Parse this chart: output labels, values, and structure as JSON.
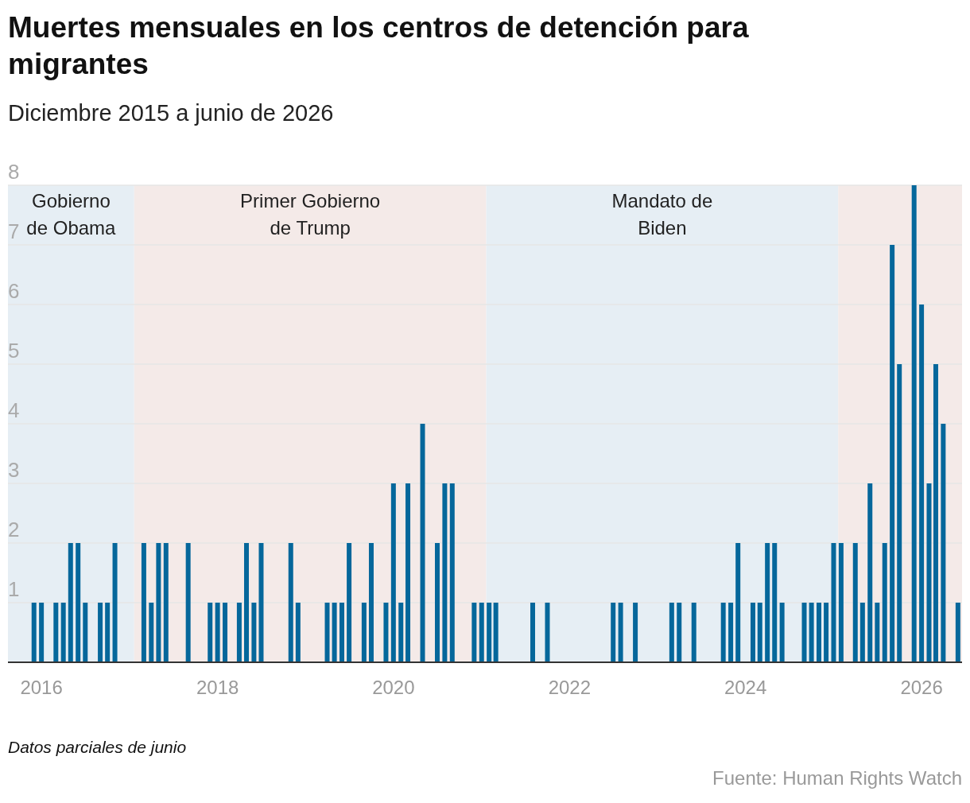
{
  "chart_data": {
    "type": "bar",
    "title": "Muertes mensuales en los centros de detención para migrantes",
    "subtitle": "Diciembre 2015 a junio de 2026",
    "x": [
      "2015-12",
      "2016-01",
      "2016-02",
      "2016-03",
      "2016-04",
      "2016-05",
      "2016-06",
      "2016-07",
      "2016-08",
      "2016-09",
      "2016-10",
      "2016-11",
      "2016-12",
      "2017-01",
      "2017-02",
      "2017-03",
      "2017-04",
      "2017-05",
      "2017-06",
      "2017-07",
      "2017-08",
      "2017-09",
      "2017-10",
      "2017-11",
      "2017-12",
      "2018-01",
      "2018-02",
      "2018-03",
      "2018-04",
      "2018-05",
      "2018-06",
      "2018-07",
      "2018-08",
      "2018-09",
      "2018-10",
      "2018-11",
      "2018-12",
      "2019-01",
      "2019-02",
      "2019-03",
      "2019-04",
      "2019-05",
      "2019-06",
      "2019-07",
      "2019-08",
      "2019-09",
      "2019-10",
      "2019-11",
      "2019-12",
      "2020-01",
      "2020-02",
      "2020-03",
      "2020-04",
      "2020-05",
      "2020-06",
      "2020-07",
      "2020-08",
      "2020-09",
      "2020-10",
      "2020-11",
      "2020-12",
      "2021-01",
      "2021-02",
      "2021-03",
      "2021-04",
      "2021-05",
      "2021-06",
      "2021-07",
      "2021-08",
      "2021-09",
      "2021-10",
      "2021-11",
      "2021-12",
      "2022-01",
      "2022-02",
      "2022-03",
      "2022-04",
      "2022-05",
      "2022-06",
      "2022-07",
      "2022-08",
      "2022-09",
      "2022-10",
      "2022-11",
      "2022-12",
      "2023-01",
      "2023-02",
      "2023-03",
      "2023-04",
      "2023-05",
      "2023-06",
      "2023-07",
      "2023-08",
      "2023-09",
      "2023-10",
      "2023-11",
      "2023-12",
      "2024-01",
      "2024-02",
      "2024-03",
      "2024-04",
      "2024-05",
      "2024-06",
      "2024-07",
      "2024-08",
      "2024-09",
      "2024-10",
      "2024-11",
      "2024-12",
      "2025-01",
      "2025-02",
      "2025-03",
      "2025-04",
      "2025-05",
      "2025-06",
      "2025-07",
      "2025-08",
      "2025-09",
      "2025-10",
      "2025-11",
      "2025-12",
      "2026-01",
      "2026-02",
      "2026-03",
      "2026-04",
      "2026-05",
      "2026-06"
    ],
    "values": [
      1,
      1,
      0,
      1,
      1,
      2,
      2,
      1,
      0,
      1,
      1,
      2,
      0,
      0,
      0,
      2,
      1,
      2,
      2,
      0,
      0,
      2,
      0,
      0,
      1,
      1,
      1,
      0,
      1,
      2,
      1,
      2,
      0,
      0,
      0,
      2,
      1,
      0,
      0,
      0,
      1,
      1,
      1,
      2,
      0,
      1,
      2,
      0,
      1,
      3,
      1,
      3,
      0,
      4,
      0,
      2,
      3,
      3,
      0,
      0,
      1,
      1,
      1,
      1,
      0,
      0,
      0,
      0,
      1,
      0,
      1,
      0,
      0,
      0,
      0,
      0,
      0,
      0,
      0,
      1,
      1,
      0,
      1,
      0,
      0,
      0,
      0,
      1,
      1,
      0,
      1,
      0,
      0,
      0,
      1,
      1,
      2,
      0,
      1,
      1,
      2,
      2,
      1,
      0,
      0,
      1,
      1,
      1,
      1,
      2,
      2,
      0,
      2,
      1,
      3,
      1,
      2,
      7,
      5,
      0,
      8,
      6,
      3,
      5,
      4,
      0,
      1
    ],
    "color": "#05679b",
    "xlim": [
      "2015-08-15",
      "2026-06-18"
    ],
    "xticks": [
      {
        "value": "2016-01-01",
        "label": "2016"
      },
      {
        "value": "2018-01-01",
        "label": "2018"
      },
      {
        "value": "2020-01-01",
        "label": "2020"
      },
      {
        "value": "2022-01-01",
        "label": "2022"
      },
      {
        "value": "2024-01-01",
        "label": "2024"
      },
      {
        "value": "2026-01-01",
        "label": "2026"
      }
    ],
    "ylim": [
      0,
      8
    ],
    "yticks": [
      1,
      2,
      3,
      4,
      5,
      6,
      7,
      8
    ],
    "grid": "y",
    "bands": [
      {
        "axis": "x",
        "from": "2015-08-15",
        "to": "2017-01-20",
        "label": "Gobierno\nde Obama",
        "color": "#e6eef4"
      },
      {
        "axis": "x",
        "from": "2017-01-20",
        "to": "2021-01-20",
        "label": "Primer Gobierno\nde Trump",
        "color": "#f4eae8"
      },
      {
        "axis": "x",
        "from": "2021-01-20",
        "to": "2025-01-20",
        "label": "Mandato de\nBiden",
        "color": "#e6eef4"
      },
      {
        "axis": "x",
        "from": "2025-01-20",
        "to": "2026-06-18",
        "color": "#f4eae8"
      }
    ],
    "annotations": [
      "Datos parciales de junio",
      "Fuente: Human Rights Watch"
    ]
  }
}
